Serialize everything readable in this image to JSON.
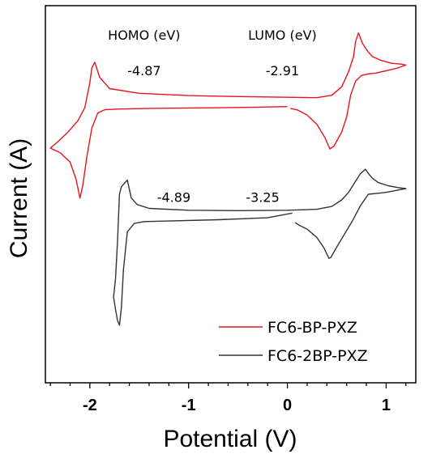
{
  "chart_data": {
    "type": "line",
    "xlabel": "Potential (V)",
    "ylabel": "Current (A)",
    "xlim": [
      -2.45,
      1.3
    ],
    "ylim": [
      -1,
      1
    ],
    "x_ticks": [
      -2,
      -1,
      0,
      1
    ],
    "x_tick_labels": [
      "-2",
      "-1",
      "0",
      "1"
    ],
    "y_ticks": [],
    "legend": {
      "placement": "bottom-right"
    },
    "annotations": [
      {
        "id": "homo-header",
        "text": "HOMO (eV)",
        "x": -1.45,
        "y": 0.82
      },
      {
        "id": "lumo-header",
        "text": "LUMO (eV)",
        "x": -0.05,
        "y": 0.82
      },
      {
        "id": "homo-1",
        "text": "-4.87",
        "x": -1.45,
        "y": 0.63
      },
      {
        "id": "lumo-1",
        "text": "-2.91",
        "x": -0.05,
        "y": 0.63
      },
      {
        "id": "homo-2",
        "text": "-4.89",
        "x": -1.15,
        "y": -0.04
      },
      {
        "id": "lumo-2",
        "text": "-3.25",
        "x": -0.25,
        "y": -0.04
      }
    ],
    "series": [
      {
        "name": "FC6-BP-PXZ",
        "color": "#e8141b",
        "points": [
          [
            0.0,
            0.465
          ],
          [
            -0.3,
            0.462
          ],
          [
            -0.8,
            0.458
          ],
          [
            -1.3,
            0.456
          ],
          [
            -1.7,
            0.452
          ],
          [
            -1.85,
            0.448
          ],
          [
            -1.92,
            0.43
          ],
          [
            -1.98,
            0.35
          ],
          [
            -2.03,
            0.2
          ],
          [
            -2.07,
            0.05
          ],
          [
            -2.1,
            -0.02
          ],
          [
            -2.14,
            0.08
          ],
          [
            -2.2,
            0.17
          ],
          [
            -2.3,
            0.22
          ],
          [
            -2.38,
            0.24
          ],
          [
            -2.4,
            0.245
          ],
          [
            -2.32,
            0.28
          ],
          [
            -2.22,
            0.33
          ],
          [
            -2.12,
            0.39
          ],
          [
            -2.05,
            0.46
          ],
          [
            -2.0,
            0.59
          ],
          [
            -1.98,
            0.67
          ],
          [
            -1.95,
            0.7
          ],
          [
            -1.9,
            0.62
          ],
          [
            -1.8,
            0.56
          ],
          [
            -1.5,
            0.535
          ],
          [
            -1.0,
            0.523
          ],
          [
            -0.5,
            0.518
          ],
          [
            0.0,
            0.514
          ],
          [
            0.3,
            0.512
          ],
          [
            0.45,
            0.525
          ],
          [
            0.55,
            0.57
          ],
          [
            0.62,
            0.65
          ],
          [
            0.67,
            0.73
          ],
          [
            0.69,
            0.81
          ],
          [
            0.72,
            0.855
          ],
          [
            0.76,
            0.8
          ],
          [
            0.81,
            0.76
          ],
          [
            0.86,
            0.73
          ],
          [
            0.95,
            0.71
          ],
          [
            1.05,
            0.695
          ],
          [
            1.15,
            0.69
          ],
          [
            1.2,
            0.685
          ],
          [
            1.1,
            0.667
          ],
          [
            1.0,
            0.655
          ],
          [
            0.9,
            0.643
          ],
          [
            0.82,
            0.638
          ],
          [
            0.75,
            0.63
          ],
          [
            0.69,
            0.6
          ],
          [
            0.64,
            0.525
          ],
          [
            0.6,
            0.41
          ],
          [
            0.55,
            0.33
          ],
          [
            0.47,
            0.255
          ],
          [
            0.43,
            0.24
          ],
          [
            0.38,
            0.3
          ],
          [
            0.3,
            0.37
          ],
          [
            0.2,
            0.42
          ],
          [
            0.1,
            0.447
          ],
          [
            0.03,
            0.455
          ]
        ]
      },
      {
        "name": "FC6-2BP-PXZ",
        "color": "#333333",
        "points": [
          [
            0.05,
            -0.1
          ],
          [
            -0.2,
            -0.125
          ],
          [
            -0.7,
            -0.135
          ],
          [
            -1.2,
            -0.142
          ],
          [
            -1.45,
            -0.145
          ],
          [
            -1.55,
            -0.155
          ],
          [
            -1.62,
            -0.2
          ],
          [
            -1.66,
            -0.4
          ],
          [
            -1.68,
            -0.6
          ],
          [
            -1.7,
            -0.695
          ],
          [
            -1.72,
            -0.67
          ],
          [
            -1.74,
            -0.61
          ],
          [
            -1.76,
            -0.545
          ],
          [
            -1.74,
            -0.45
          ],
          [
            -1.72,
            -0.25
          ],
          [
            -1.7,
            0.0
          ],
          [
            -1.68,
            0.04
          ],
          [
            -1.62,
            0.075
          ],
          [
            -1.58,
            -0.02
          ],
          [
            -1.52,
            -0.055
          ],
          [
            -1.4,
            -0.075
          ],
          [
            -1.0,
            -0.085
          ],
          [
            -0.5,
            -0.087
          ],
          [
            0.0,
            -0.085
          ],
          [
            0.3,
            -0.08
          ],
          [
            0.45,
            -0.065
          ],
          [
            0.55,
            -0.03
          ],
          [
            0.62,
            0.01
          ],
          [
            0.68,
            0.06
          ],
          [
            0.74,
            0.11
          ],
          [
            0.79,
            0.132
          ],
          [
            0.82,
            0.11
          ],
          [
            0.86,
            0.085
          ],
          [
            0.92,
            0.062
          ],
          [
            1.02,
            0.045
          ],
          [
            1.12,
            0.035
          ],
          [
            1.2,
            0.03
          ],
          [
            1.1,
            0.02
          ],
          [
            1.0,
            0.01
          ],
          [
            0.92,
            0.005
          ],
          [
            0.82,
            -0.0
          ],
          [
            0.74,
            -0.06
          ],
          [
            0.66,
            -0.14
          ],
          [
            0.58,
            -0.21
          ],
          [
            0.5,
            -0.28
          ],
          [
            0.44,
            -0.335
          ],
          [
            0.42,
            -0.34
          ],
          [
            0.37,
            -0.285
          ],
          [
            0.3,
            -0.23
          ],
          [
            0.2,
            -0.185
          ],
          [
            0.12,
            -0.165
          ],
          [
            0.08,
            -0.15
          ]
        ]
      }
    ]
  }
}
